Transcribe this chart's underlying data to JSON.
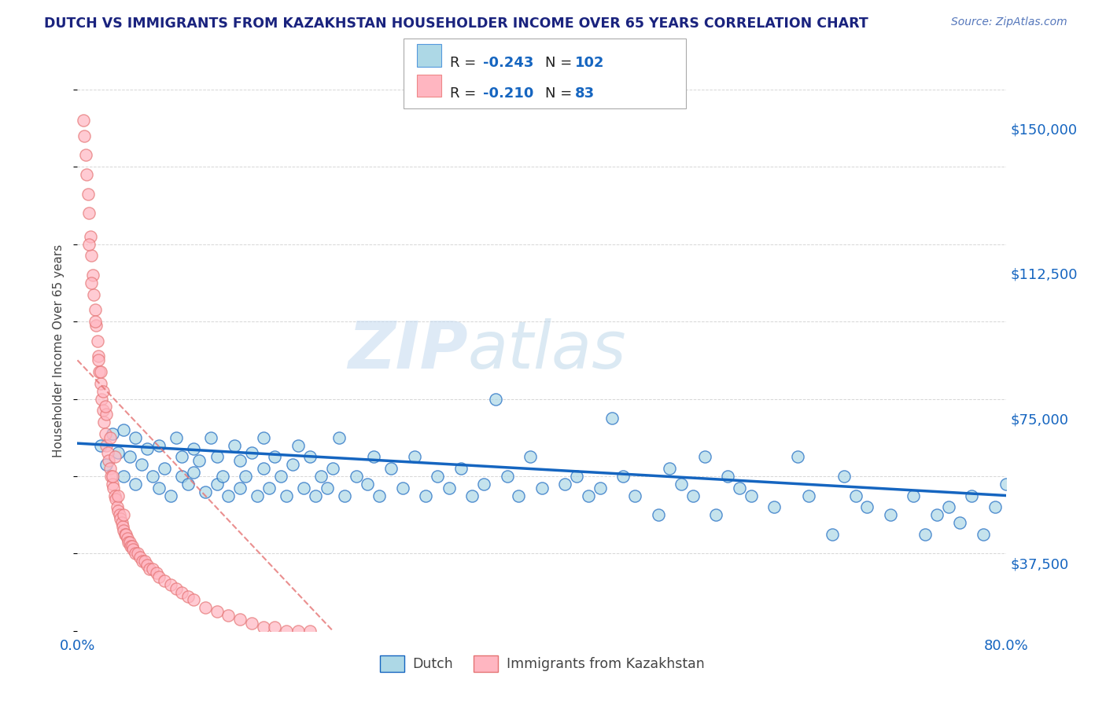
{
  "title": "DUTCH VS IMMIGRANTS FROM KAZAKHSTAN HOUSEHOLDER INCOME OVER 65 YEARS CORRELATION CHART",
  "source": "Source: ZipAtlas.com",
  "xlabel_start": "0.0%",
  "xlabel_end": "80.0%",
  "ylabel": "Householder Income Over 65 years",
  "y_ticks": [
    37500,
    75000,
    112500,
    150000
  ],
  "y_tick_labels": [
    "$37,500",
    "$75,000",
    "$112,500",
    "$150,000"
  ],
  "x_range": [
    0.0,
    0.8
  ],
  "y_range": [
    20000,
    165000
  ],
  "legend_dutch_R": "-0.243",
  "legend_dutch_N": "102",
  "legend_kaz_R": "-0.210",
  "legend_kaz_N": "83",
  "dutch_color": "#ADD8E6",
  "kaz_color": "#FFB6C1",
  "dutch_line_color": "#1565C0",
  "kaz_line_color": "#E57373",
  "title_color": "#1A237E",
  "source_color": "#1565C0",
  "watermark_zip": "ZIP",
  "watermark_atlas": "atlas",
  "dutch_scatter_x": [
    0.02,
    0.025,
    0.03,
    0.035,
    0.04,
    0.04,
    0.045,
    0.05,
    0.05,
    0.055,
    0.06,
    0.065,
    0.07,
    0.07,
    0.075,
    0.08,
    0.085,
    0.09,
    0.09,
    0.095,
    0.1,
    0.1,
    0.105,
    0.11,
    0.115,
    0.12,
    0.12,
    0.125,
    0.13,
    0.135,
    0.14,
    0.14,
    0.145,
    0.15,
    0.155,
    0.16,
    0.16,
    0.165,
    0.17,
    0.175,
    0.18,
    0.185,
    0.19,
    0.195,
    0.2,
    0.205,
    0.21,
    0.215,
    0.22,
    0.225,
    0.23,
    0.24,
    0.25,
    0.255,
    0.26,
    0.27,
    0.28,
    0.29,
    0.3,
    0.31,
    0.32,
    0.33,
    0.34,
    0.35,
    0.36,
    0.37,
    0.38,
    0.39,
    0.4,
    0.42,
    0.43,
    0.44,
    0.45,
    0.46,
    0.47,
    0.48,
    0.5,
    0.51,
    0.52,
    0.53,
    0.54,
    0.55,
    0.56,
    0.57,
    0.58,
    0.6,
    0.62,
    0.63,
    0.65,
    0.66,
    0.67,
    0.68,
    0.7,
    0.72,
    0.73,
    0.74,
    0.75,
    0.76,
    0.77,
    0.78,
    0.79,
    0.8
  ],
  "dutch_scatter_y": [
    68000,
    63000,
    71000,
    66000,
    60000,
    72000,
    65000,
    58000,
    70000,
    63000,
    67000,
    60000,
    57000,
    68000,
    62000,
    55000,
    70000,
    60000,
    65000,
    58000,
    67000,
    61000,
    64000,
    56000,
    70000,
    58000,
    65000,
    60000,
    55000,
    68000,
    57000,
    64000,
    60000,
    66000,
    55000,
    62000,
    70000,
    57000,
    65000,
    60000,
    55000,
    63000,
    68000,
    57000,
    65000,
    55000,
    60000,
    57000,
    62000,
    70000,
    55000,
    60000,
    58000,
    65000,
    55000,
    62000,
    57000,
    65000,
    55000,
    60000,
    57000,
    62000,
    55000,
    58000,
    80000,
    60000,
    55000,
    65000,
    57000,
    58000,
    60000,
    55000,
    57000,
    75000,
    60000,
    55000,
    50000,
    62000,
    58000,
    55000,
    65000,
    50000,
    60000,
    57000,
    55000,
    52000,
    65000,
    55000,
    45000,
    60000,
    55000,
    52000,
    50000,
    55000,
    45000,
    50000,
    52000,
    48000,
    55000,
    45000,
    52000,
    58000
  ],
  "kaz_scatter_x": [
    0.005,
    0.006,
    0.007,
    0.008,
    0.009,
    0.01,
    0.011,
    0.012,
    0.013,
    0.014,
    0.015,
    0.016,
    0.017,
    0.018,
    0.019,
    0.02,
    0.021,
    0.022,
    0.023,
    0.024,
    0.025,
    0.026,
    0.027,
    0.028,
    0.029,
    0.03,
    0.031,
    0.032,
    0.033,
    0.034,
    0.035,
    0.036,
    0.037,
    0.038,
    0.039,
    0.04,
    0.041,
    0.042,
    0.043,
    0.044,
    0.045,
    0.046,
    0.047,
    0.048,
    0.05,
    0.052,
    0.054,
    0.056,
    0.058,
    0.06,
    0.062,
    0.065,
    0.068,
    0.07,
    0.075,
    0.08,
    0.085,
    0.09,
    0.095,
    0.1,
    0.11,
    0.12,
    0.13,
    0.14,
    0.15,
    0.16,
    0.17,
    0.18,
    0.19,
    0.2,
    0.01,
    0.012,
    0.015,
    0.018,
    0.022,
    0.025,
    0.028,
    0.032,
    0.02,
    0.024,
    0.03,
    0.035,
    0.04
  ],
  "kaz_scatter_y": [
    152000,
    148000,
    143000,
    138000,
    133000,
    128000,
    122000,
    117000,
    112000,
    107000,
    103000,
    99000,
    95000,
    91000,
    87000,
    84000,
    80000,
    77000,
    74000,
    71000,
    68000,
    66000,
    64000,
    62000,
    60000,
    58000,
    57000,
    55000,
    54000,
    52000,
    51000,
    50000,
    49000,
    48000,
    47000,
    46000,
    45000,
    45000,
    44000,
    43000,
    43000,
    42000,
    42000,
    41000,
    40000,
    40000,
    39000,
    38000,
    38000,
    37000,
    36000,
    36000,
    35000,
    34000,
    33000,
    32000,
    31000,
    30000,
    29000,
    28000,
    26000,
    25000,
    24000,
    23000,
    22000,
    21000,
    21000,
    20000,
    20000,
    20000,
    120000,
    110000,
    100000,
    90000,
    82000,
    76000,
    70000,
    65000,
    87000,
    78000,
    60000,
    55000,
    50000
  ]
}
